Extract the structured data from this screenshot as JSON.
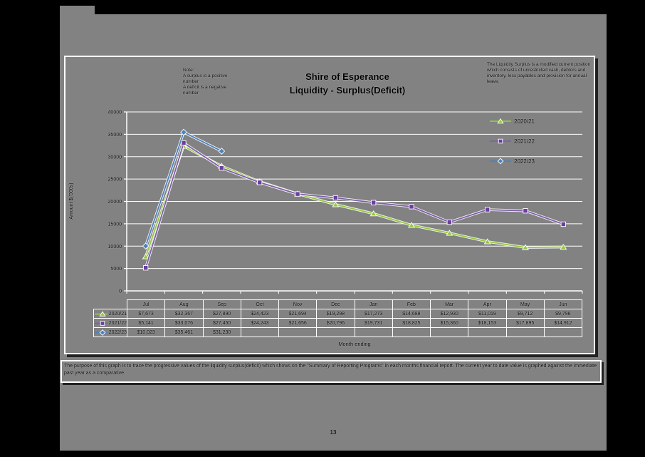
{
  "page": {
    "number": "13",
    "footer": "The purpose of this graph is to trace the progressive values of the liquidity surplus(deficit) which shows on the \"Summary of Reporting Programs\" in each months financial report. The current year to date value is graphed against the immediate past year as a comparative."
  },
  "chart": {
    "title_line1": "Shire of Esperance",
    "title_line2": "Liquidity - Surplus(Deficit)",
    "left_note": "Note:\nA surplus is a positive\nnumber\nA deficit is a negative\nnumber",
    "right_note": "The Liquidity Surplus is a modified current position which consists of unrestricted cash, debtors and inventory, less payables and provision for annual leave.",
    "y_axis_title": "Amount $('000s)",
    "x_axis_title": "Month ending"
  },
  "chart_data": {
    "type": "line",
    "categories": [
      "Jul",
      "Aug",
      "Sep",
      "Oct",
      "Nov",
      "Dec",
      "Jan",
      "Feb",
      "Mar",
      "Apr",
      "May",
      "Jun"
    ],
    "series": [
      {
        "name": "2020/21",
        "color": "#94C83D",
        "marker_color": "#94C83D",
        "marker": "triangle",
        "values": [
          7673,
          32367,
          27890,
          24423,
          21694,
          19298,
          17273,
          14688,
          12930,
          11019,
          9712,
          9798
        ]
      },
      {
        "name": "2021/22",
        "color": "#7E5FA8",
        "marker_color": "#6B3FA0",
        "marker": "square",
        "values": [
          5141,
          33076,
          27450,
          24243,
          21656,
          20796,
          19731,
          18825,
          15360,
          18153,
          17895,
          14912
        ]
      },
      {
        "name": "2022/23",
        "color": "#4E81BD",
        "marker_color": "#4E81BD",
        "marker": "diamond",
        "values": [
          10023,
          35461,
          31230,
          null,
          null,
          null,
          null,
          null,
          null,
          null,
          null,
          null
        ]
      }
    ],
    "ylim": [
      0,
      40000
    ],
    "y_tick_step": 5000,
    "grid": true,
    "legend_position": "right-top-overlay"
  },
  "table": {
    "columns": [
      "Jul",
      "Aug",
      "Sep",
      "Oct",
      "Nov",
      "Dec",
      "Jan",
      "Feb",
      "Mar",
      "Apr",
      "May",
      "Jun"
    ],
    "rows": [
      {
        "label": "2020/21",
        "cells": [
          "$7,673",
          "$32,367",
          "$27,890",
          "$24,423",
          "$21,694",
          "$19,298",
          "$17,273",
          "$14,688",
          "$12,930",
          "$11,019",
          "$9,712",
          "$9,798"
        ]
      },
      {
        "label": "2021/22",
        "cells": [
          "$5,141",
          "$33,076",
          "$27,450",
          "$24,243",
          "$21,656",
          "$20,796",
          "$19,731",
          "$18,825",
          "$15,360",
          "$18,153",
          "$17,895",
          "$14,912"
        ]
      },
      {
        "label": "2022/23",
        "cells": [
          "$10,023",
          "$35,461",
          "$31,230",
          "",
          "",
          "",
          "",
          "",
          "",
          "",
          "",
          ""
        ]
      }
    ]
  }
}
